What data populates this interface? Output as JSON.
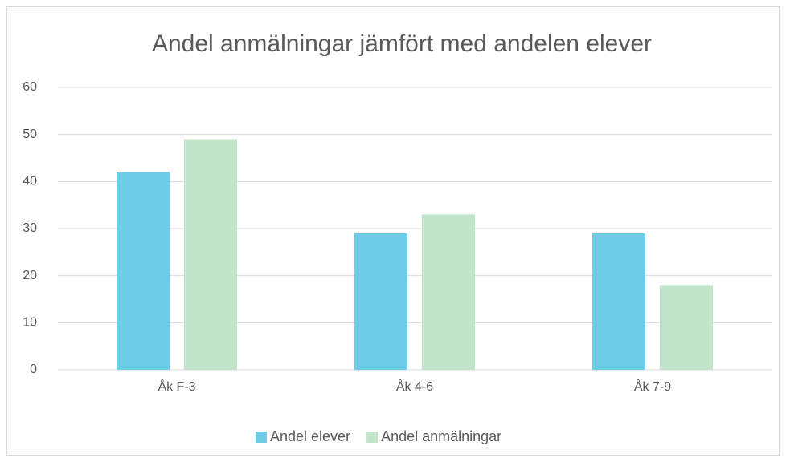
{
  "chart_data": {
    "type": "bar",
    "title": "Andel anmälningar jämfört med andelen elever",
    "categories": [
      "Åk F-3",
      "Åk 4-6",
      "Åk 7-9"
    ],
    "series": [
      {
        "name": "Andel elever",
        "color": "#6dcde9",
        "values": [
          42,
          29,
          29
        ]
      },
      {
        "name": "Andel anmälningar",
        "color": "#c2e4c9",
        "values": [
          49,
          33,
          18
        ]
      }
    ],
    "ylim": [
      0,
      60
    ],
    "yticks": [
      0,
      10,
      20,
      30,
      40,
      50,
      60
    ],
    "grid": true,
    "legend": "bottom"
  }
}
